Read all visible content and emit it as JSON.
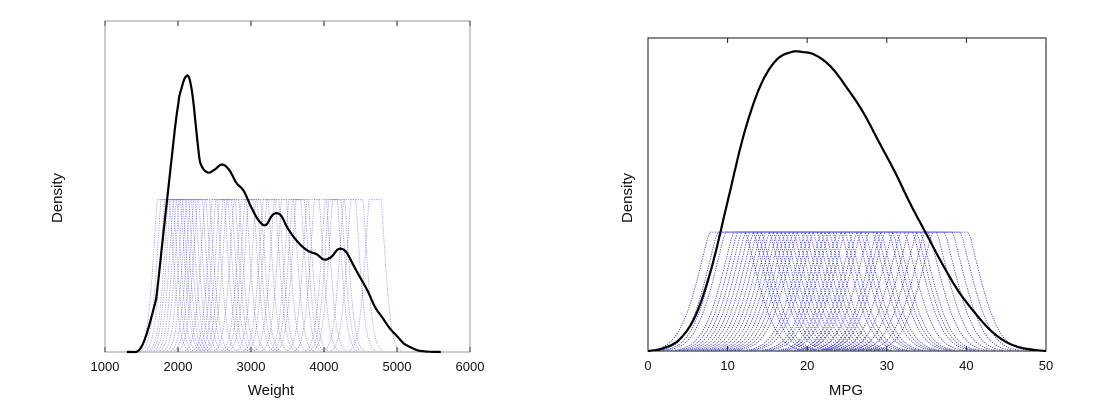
{
  "chart_data": [
    {
      "type": "line",
      "xlabel": "Weight",
      "ylabel": "Density",
      "xlim": [
        1000,
        6000
      ],
      "xticks": [
        "1000",
        "2000",
        "3000",
        "4000",
        "5000",
        "6000"
      ],
      "yticks_shown": false,
      "grid": false,
      "kernel_color": "#3a3ad6",
      "density_color": "#000000",
      "kernel_height_fraction": 0.46,
      "kernel_centers": [
        1800,
        1850,
        1900,
        1950,
        1980,
        2020,
        2060,
        2100,
        2150,
        2200,
        2250,
        2300,
        2350,
        2450,
        2550,
        2600,
        2650,
        2700,
        2750,
        2850,
        2950,
        3000,
        3050,
        3150,
        3250,
        3300,
        3400,
        3500,
        3600,
        3650,
        3700,
        3850,
        3950,
        4100,
        4150,
        4200,
        4350,
        4450,
        4700
      ],
      "density_curve": {
        "x": [
          1300,
          1500,
          1700,
          1800,
          1900,
          2000,
          2050,
          2100,
          2150,
          2200,
          2250,
          2300,
          2400,
          2500,
          2600,
          2700,
          2800,
          2900,
          3000,
          3100,
          3200,
          3300,
          3400,
          3500,
          3600,
          3700,
          3800,
          3900,
          4000,
          4100,
          4200,
          4300,
          4400,
          4500,
          4600,
          4700,
          4800,
          4900,
          5000,
          5100,
          5300,
          5600
        ],
        "y": [
          0.0,
          0.02,
          0.2,
          0.45,
          0.7,
          0.93,
          1.0,
          1.04,
          1.04,
          0.97,
          0.84,
          0.72,
          0.68,
          0.69,
          0.71,
          0.69,
          0.64,
          0.61,
          0.55,
          0.5,
          0.48,
          0.52,
          0.52,
          0.47,
          0.43,
          0.4,
          0.38,
          0.37,
          0.35,
          0.36,
          0.39,
          0.38,
          0.33,
          0.28,
          0.23,
          0.17,
          0.13,
          0.09,
          0.06,
          0.03,
          0.005,
          0.0
        ]
      }
    },
    {
      "type": "line",
      "xlabel": "MPG",
      "ylabel": "Density",
      "xlim": [
        0,
        50
      ],
      "xticks": [
        "0",
        "10",
        "20",
        "30",
        "40",
        "50"
      ],
      "yticks_shown": false,
      "grid": false,
      "kernel_color": "#1a1ad0",
      "density_color": "#000000",
      "kernel_height_fraction": 0.38,
      "kernel_centers": [
        10,
        11,
        11.5,
        12,
        13,
        13.5,
        14,
        14.5,
        15,
        15.5,
        16,
        16.5,
        17,
        17.5,
        18,
        18.5,
        19,
        19.5,
        20,
        20.5,
        21,
        22,
        22.5,
        23,
        24,
        24.5,
        25,
        26,
        26.5,
        27,
        28,
        28.5,
        29,
        30,
        31,
        31.5,
        32,
        33,
        34,
        35,
        36,
        37,
        38
      ],
      "density_curve": {
        "x": [
          0,
          2,
          4,
          6,
          8,
          10,
          12,
          14,
          16,
          18,
          19.5,
          21,
          23,
          25,
          27,
          29,
          31,
          33,
          35,
          37,
          39,
          41,
          43,
          45,
          47,
          50
        ],
        "y": [
          0.0,
          0.01,
          0.04,
          0.12,
          0.28,
          0.5,
          0.72,
          0.88,
          0.97,
          1.0,
          1.0,
          0.99,
          0.95,
          0.88,
          0.8,
          0.7,
          0.6,
          0.49,
          0.39,
          0.29,
          0.2,
          0.13,
          0.07,
          0.03,
          0.01,
          0.0
        ]
      }
    }
  ]
}
